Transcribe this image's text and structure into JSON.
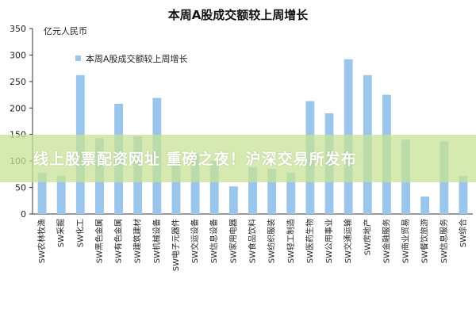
{
  "chart_data": {
    "type": "bar",
    "title": "本周A股成交额较上周增长",
    "unit_label": "亿元人民币",
    "legend": "本周A股成交额较上周增长",
    "legend_position": "top-left",
    "ylim": [
      0,
      350
    ],
    "yticks": [
      0,
      50,
      100,
      150,
      200,
      250,
      300,
      350
    ],
    "grid": false,
    "bar_color": "#99c6ea",
    "categories": [
      "SW农林牧渔",
      "SW采掘",
      "SW化工",
      "SW黑色金属",
      "SW有色金属",
      "SW建筑建材",
      "SW机械设备",
      "SW电子元器件",
      "SW交运设备",
      "SW信息设备",
      "SW家用电器",
      "SW食品饮料",
      "SW纺织服装",
      "SW轻工制造",
      "SW医药生物",
      "SW公用事业",
      "SW交通运输",
      "SW房地产",
      "SW金融服务",
      "SW商业贸易",
      "SW餐饮旅游",
      "SW信息服务",
      "SW综合"
    ],
    "values": [
      78,
      72,
      262,
      143,
      208,
      147,
      219,
      100,
      114,
      100,
      52,
      88,
      85,
      78,
      213,
      190,
      292,
      262,
      225,
      140,
      33,
      137,
      72
    ]
  },
  "banner": {
    "text": "线上股票配资网址 重磅之夜！沪深交易所发布",
    "color": "#c8e196"
  }
}
